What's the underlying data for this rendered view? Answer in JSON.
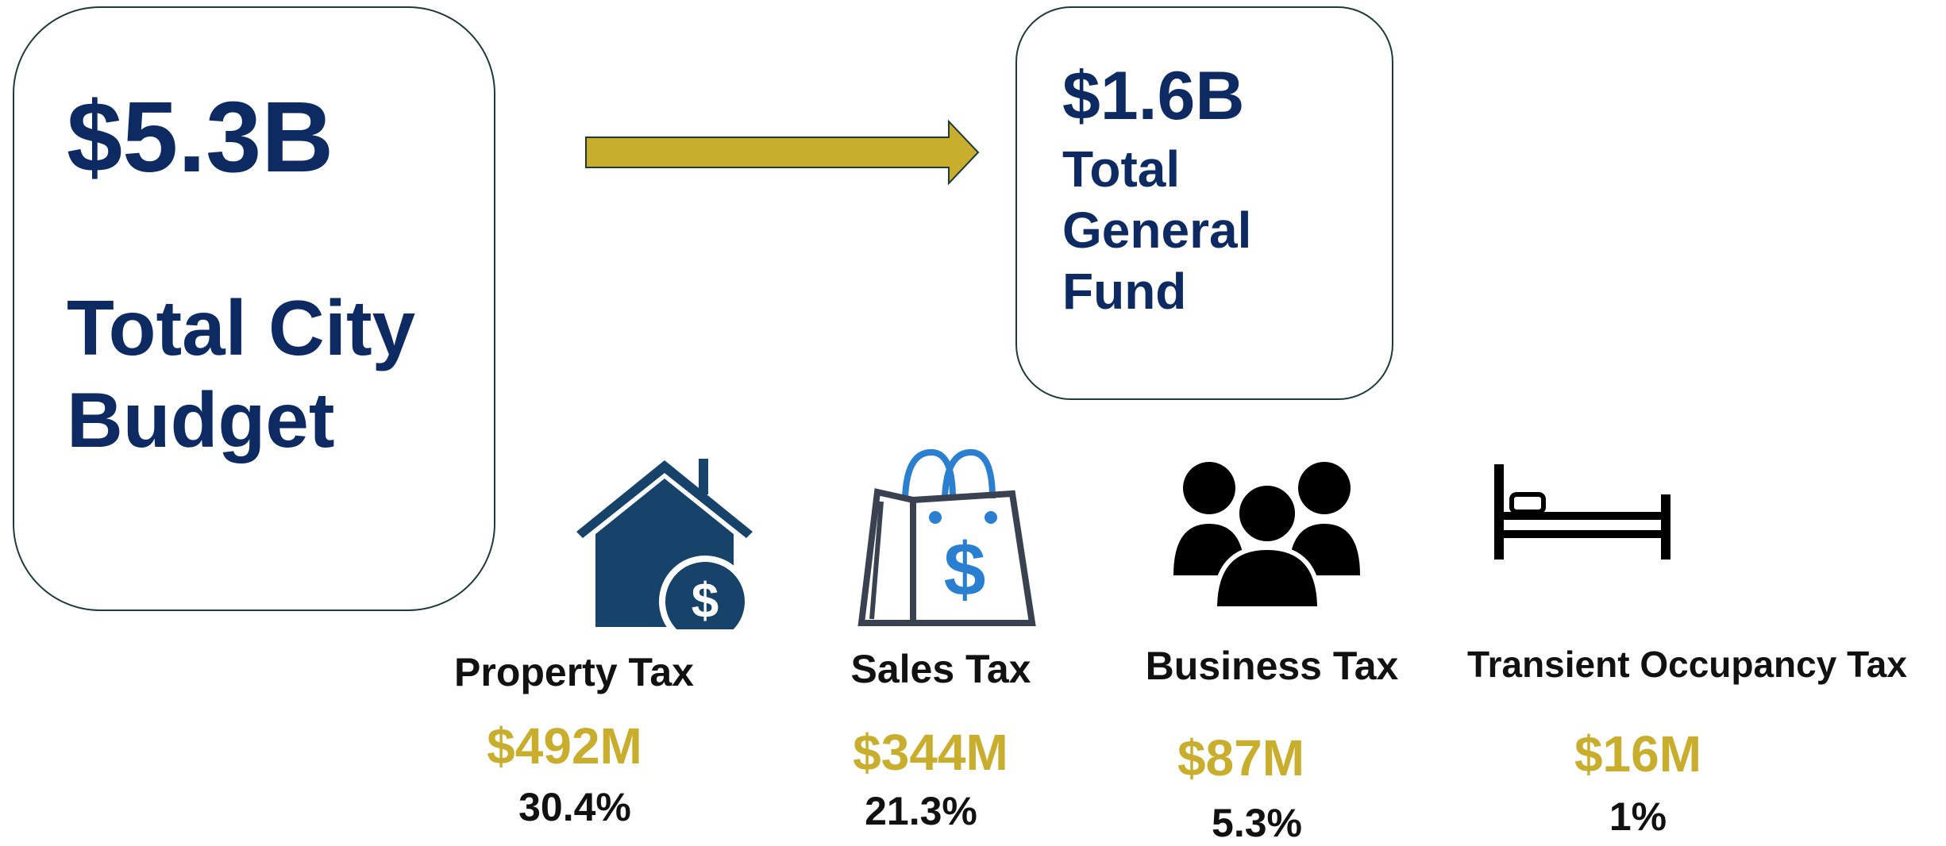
{
  "budget": {
    "amount": "$5.3B",
    "label": "Total City Budget"
  },
  "general_fund": {
    "amount": "$1.6B",
    "label": "Total General Fund"
  },
  "taxes": [
    {
      "name": "Property Tax",
      "amount": "$492M",
      "share": "30.4%"
    },
    {
      "name": "Sales Tax",
      "amount": "$344M",
      "share": "21.3%"
    },
    {
      "name": "Business Tax",
      "amount": "$87M",
      "share": "5.3%"
    },
    {
      "name": "Transient Occupancy Tax",
      "amount": "$16M",
      "share": "1%"
    }
  ]
}
